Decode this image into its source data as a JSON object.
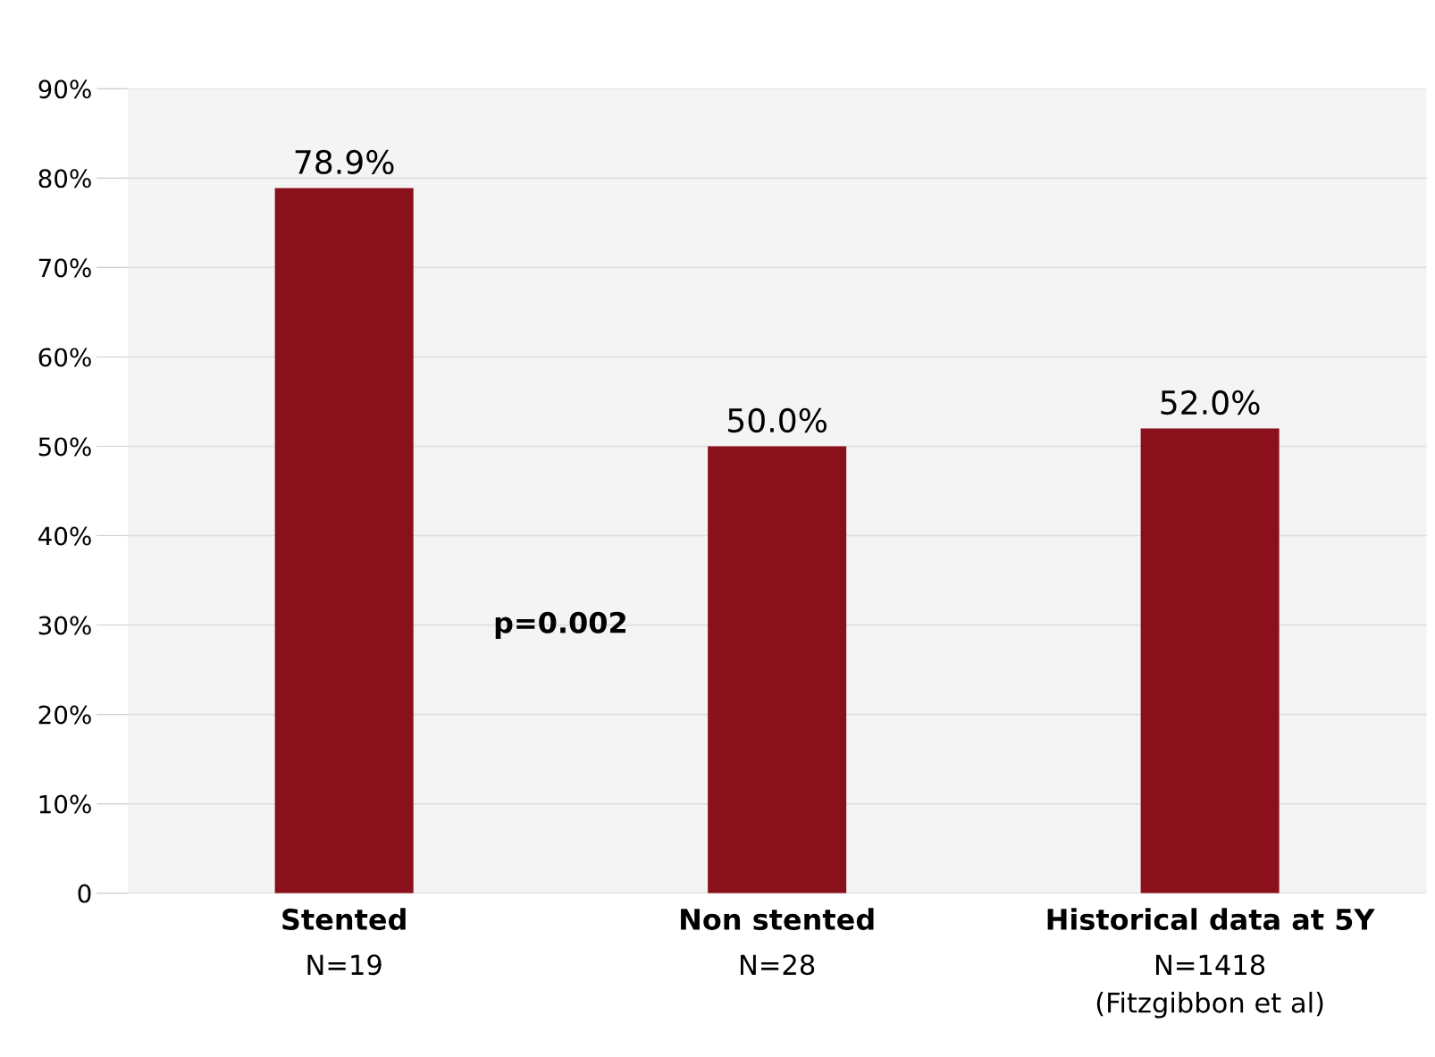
{
  "chart_data": {
    "type": "bar",
    "categories": [
      "Stented\nN=19",
      "Non stented\nN=28",
      "Historical data at 5Y\nN=1418\n(Fitzgibbon et al)"
    ],
    "values": [
      78.9,
      50.0,
      52.0
    ],
    "value_labels": [
      "78.9%",
      "50.0%",
      "52.0%"
    ],
    "color": "#8a111c",
    "ylim": [
      0,
      90
    ],
    "yticks": [
      {
        "value": 0,
        "label": "0"
      },
      {
        "value": 10,
        "label": "10%"
      },
      {
        "value": 20,
        "label": "20%"
      },
      {
        "value": 30,
        "label": "30%"
      },
      {
        "value": 40,
        "label": "40%"
      },
      {
        "value": 50,
        "label": "50%"
      },
      {
        "value": 60,
        "label": "60%"
      },
      {
        "value": 70,
        "label": "70%"
      },
      {
        "value": 80,
        "label": "80%"
      },
      {
        "value": 90,
        "label": "90%"
      }
    ],
    "grid": "y",
    "annotations": [
      "p=0.002"
    ]
  }
}
